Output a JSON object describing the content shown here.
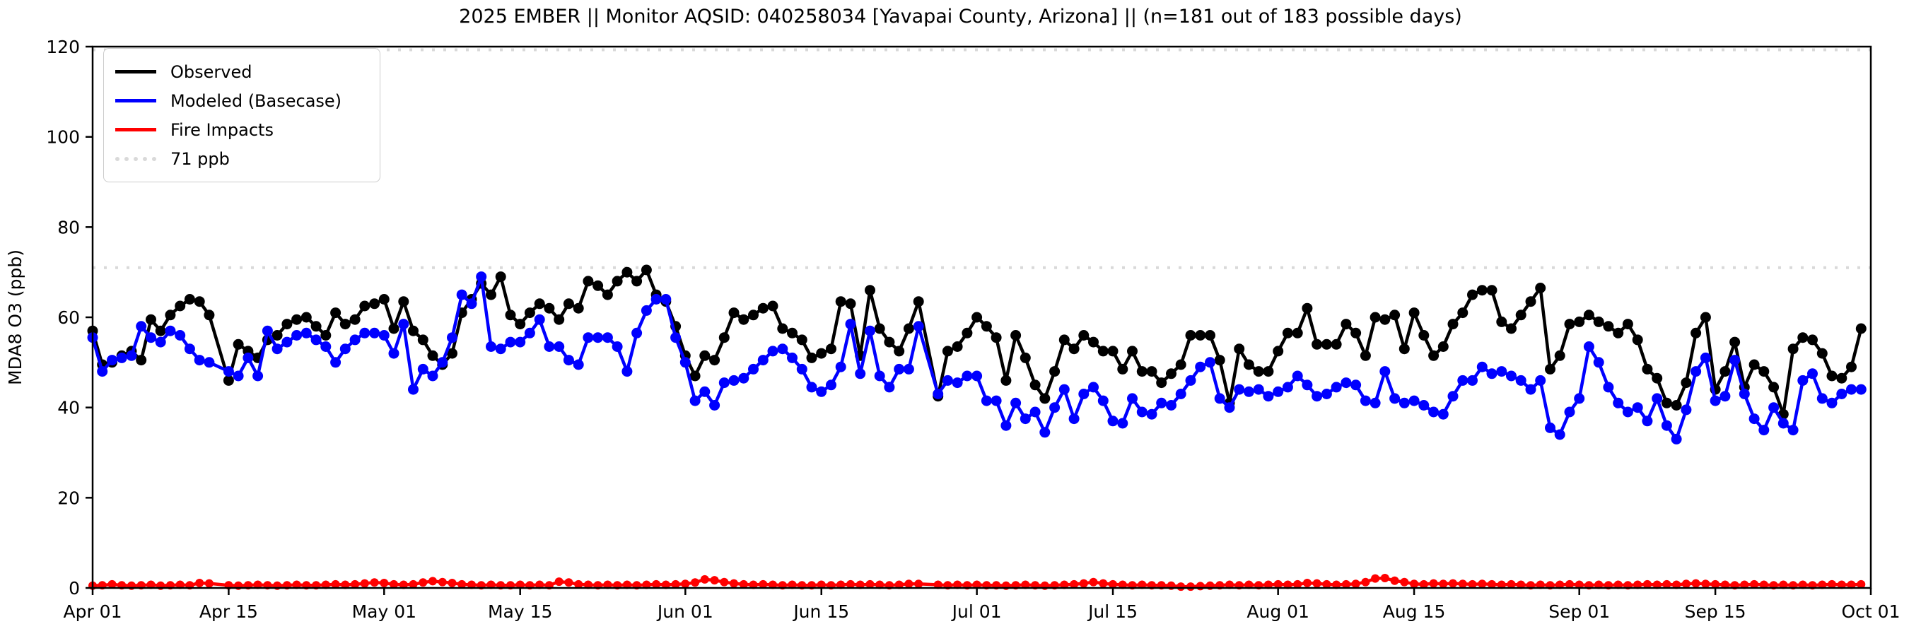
{
  "title": "2025 EMBER || Monitor AQSID: 040258034 [Yavapai County, Arizona] || (n=181 out of 183 possible days)",
  "legend": {
    "items": [
      {
        "label": "Observed",
        "color": "#000000",
        "style": "solid"
      },
      {
        "label": "Modeled (Basecase)",
        "color": "#0000ff",
        "style": "solid"
      },
      {
        "label": "Fire Impacts",
        "color": "#ff0000",
        "style": "solid"
      },
      {
        "label": "71 ppb",
        "color": "#d9d9d9",
        "style": "dotted"
      }
    ]
  },
  "axes": {
    "y_label": "MDA8 O3 (ppb)",
    "y_ticks": [
      0,
      20,
      40,
      60,
      80,
      100,
      120
    ],
    "y_min": 0,
    "y_max": 120,
    "x_ticks": [
      {
        "label": "Apr 01",
        "day": 0
      },
      {
        "label": "Apr 15",
        "day": 14
      },
      {
        "label": "May 01",
        "day": 30
      },
      {
        "label": "May 15",
        "day": 44
      },
      {
        "label": "Jun 01",
        "day": 61
      },
      {
        "label": "Jun 15",
        "day": 75
      },
      {
        "label": "Jul 01",
        "day": 91
      },
      {
        "label": "Jul 15",
        "day": 105
      },
      {
        "label": "Aug 01",
        "day": 122
      },
      {
        "label": "Aug 15",
        "day": 136
      },
      {
        "label": "Sep 01",
        "day": 153
      },
      {
        "label": "Sep 15",
        "day": 167
      },
      {
        "label": "Oct 01",
        "day": 183
      }
    ],
    "days_total": 183
  },
  "chart_data": {
    "type": "line",
    "title": "2025 EMBER || Monitor AQSID: 040258034 [Yavapai County, Arizona] || (n=181 out of 183 possible days)",
    "xlabel": "",
    "ylabel": "MDA8 O3 (ppb)",
    "ylim": [
      0,
      120
    ],
    "x_range": [
      "Apr 01",
      "Oct 01"
    ],
    "n_observed": 181,
    "n_possible": 183,
    "grid": false,
    "legend_position": "upper-left",
    "reference_lines": [
      {
        "value": 71,
        "label": "71 ppb",
        "color": "#d9d9d9",
        "style": "dotted"
      },
      {
        "value": 119.3,
        "label": "",
        "color": "#d9d9d9",
        "style": "dotted"
      }
    ],
    "series": [
      {
        "name": "Observed",
        "color": "#000000",
        "marker": "circle",
        "values": [
          57,
          49.5,
          50,
          51.5,
          52.5,
          50.5,
          59.5,
          57,
          60.5,
          62.5,
          64,
          63.5,
          60.5,
          null,
          46,
          54,
          52.5,
          51,
          55,
          56,
          58.5,
          59.5,
          60,
          58,
          56,
          61,
          58.5,
          59.5,
          62.5,
          63,
          64,
          57.5,
          63.5,
          57,
          55,
          51.5,
          49.5,
          52,
          61,
          64,
          67.5,
          65,
          69,
          60.5,
          58.5,
          61,
          63,
          62,
          59.5,
          63,
          62,
          68,
          67,
          65,
          68,
          70,
          68,
          70.5,
          65,
          63.5,
          58,
          51.5,
          47,
          51.5,
          50.5,
          55.5,
          61,
          59.5,
          60.5,
          62,
          62.5,
          57.5,
          56.5,
          55,
          51,
          52,
          53,
          63.5,
          63,
          51.5,
          66,
          57.5,
          54.5,
          52.5,
          57.5,
          63.5,
          null,
          42.5,
          52.5,
          53.5,
          56.5,
          60,
          58,
          55.5,
          46,
          56,
          51,
          45,
          42,
          48,
          55,
          53,
          56,
          54.5,
          52.5,
          52.5,
          48.5,
          52.5,
          48,
          48,
          45.5,
          47.5,
          49.5,
          56,
          56,
          56,
          50.5,
          41,
          53,
          49.5,
          48,
          48,
          52.5,
          56.5,
          56.5,
          62,
          54,
          54,
          54,
          58.5,
          56.5,
          51.5,
          60,
          59.5,
          60.5,
          53,
          61,
          56,
          51.5,
          53.5,
          58.5,
          61,
          65,
          66,
          66,
          59,
          57.5,
          60.5,
          63.5,
          66.5,
          48.5,
          51.5,
          58.5,
          59,
          60.5,
          59,
          58,
          56.5,
          58.5,
          55,
          48.5,
          46.5,
          41,
          40.5,
          45.5,
          56.5,
          60,
          44,
          48,
          54.5,
          44.5,
          49.5,
          48,
          44.5,
          38.5,
          53,
          55.5,
          55,
          52,
          47,
          46.5,
          49,
          57.5
        ]
      },
      {
        "name": "Modeled (Basecase)",
        "color": "#0000ff",
        "marker": "circle",
        "values": [
          55.5,
          48,
          50.5,
          51,
          51.5,
          58,
          55.5,
          54.5,
          57,
          56,
          53,
          50.5,
          50,
          null,
          48,
          47,
          51,
          47,
          57,
          53,
          54.5,
          56,
          56.5,
          55,
          53.5,
          50,
          53,
          55,
          56.5,
          56.5,
          56,
          52,
          58.5,
          44,
          48.5,
          47,
          50,
          55.5,
          65,
          63,
          69,
          53.5,
          53,
          54.5,
          54.5,
          56.5,
          59.5,
          53.5,
          53.5,
          50.5,
          49.5,
          55.5,
          55.5,
          55.5,
          53.5,
          48,
          56.5,
          61.5,
          64,
          64,
          55.5,
          50,
          41.5,
          43.5,
          40.5,
          45.5,
          46,
          46.5,
          48.5,
          50.5,
          52.5,
          53,
          51,
          48.5,
          44.5,
          43.5,
          45,
          49,
          58.5,
          47.5,
          57,
          47,
          44.5,
          48.5,
          48.5,
          58,
          null,
          43,
          46,
          45.5,
          47,
          47,
          41.5,
          41.5,
          36,
          41,
          37.5,
          39,
          34.5,
          40,
          44,
          37.5,
          43,
          44.5,
          41.5,
          37,
          36.5,
          42,
          39,
          38.5,
          41,
          40.5,
          43,
          46,
          49,
          50,
          42,
          40,
          44,
          43.5,
          44,
          42.5,
          43.5,
          44.5,
          47,
          45,
          42.5,
          43,
          44.5,
          45.5,
          45,
          41.5,
          41,
          48,
          42,
          41,
          41.5,
          40.5,
          39,
          38.5,
          42.5,
          46,
          46,
          49,
          47.5,
          48,
          47,
          46,
          44,
          46,
          35.5,
          34,
          39,
          42,
          53.5,
          50,
          44.5,
          41,
          39,
          40,
          37,
          42,
          36,
          33,
          39.5,
          48,
          51,
          41.5,
          42.5,
          50.5,
          43,
          37.5,
          35,
          40,
          36.5,
          35,
          46,
          47.5,
          42,
          41,
          43,
          44,
          44
        ]
      },
      {
        "name": "Fire Impacts",
        "color": "#ff0000",
        "marker": "circle",
        "values": [
          0.5,
          0.6,
          0.8,
          0.6,
          0.5,
          0.6,
          0.7,
          0.5,
          0.6,
          0.7,
          0.6,
          1.1,
          1.0,
          null,
          0.6,
          0.5,
          0.6,
          0.7,
          0.6,
          0.5,
          0.6,
          0.7,
          0.6,
          0.6,
          0.7,
          0.8,
          0.7,
          0.8,
          1.0,
          1.2,
          1.1,
          0.8,
          0.7,
          0.8,
          1.2,
          1.5,
          1.3,
          1.1,
          0.8,
          0.7,
          0.6,
          0.7,
          0.6,
          0.6,
          0.7,
          0.6,
          0.7,
          0.6,
          1.4,
          1.2,
          0.8,
          0.7,
          0.6,
          0.7,
          0.6,
          0.7,
          0.6,
          0.7,
          0.8,
          0.7,
          0.8,
          0.9,
          1.2,
          1.9,
          1.7,
          1.3,
          1.0,
          0.8,
          0.7,
          0.8,
          0.7,
          0.6,
          0.7,
          0.6,
          0.6,
          0.7,
          0.6,
          0.7,
          0.8,
          0.7,
          0.8,
          0.7,
          0.6,
          0.7,
          0.9,
          0.9,
          null,
          0.7,
          0.6,
          0.7,
          0.6,
          0.7,
          0.6,
          0.6,
          0.5,
          0.6,
          0.7,
          0.6,
          0.5,
          0.6,
          0.7,
          0.8,
          1.0,
          1.3,
          1.0,
          0.8,
          0.7,
          0.6,
          0.7,
          0.6,
          0.6,
          0.5,
          0.3,
          0.3,
          0.4,
          0.5,
          0.6,
          0.7,
          0.6,
          0.7,
          0.6,
          0.7,
          0.8,
          0.7,
          0.8,
          1.1,
          1.0,
          0.8,
          0.7,
          0.8,
          0.9,
          1.3,
          2.1,
          2.2,
          1.6,
          1.3,
          0.9,
          0.8,
          1.0,
          0.9,
          1.0,
          0.9,
          0.8,
          0.9,
          0.8,
          0.7,
          0.8,
          0.7,
          0.6,
          0.7,
          0.6,
          0.7,
          0.8,
          0.7,
          0.6,
          0.7,
          0.6,
          0.7,
          0.6,
          0.7,
          0.8,
          0.7,
          0.8,
          0.7,
          0.9,
          1.0,
          0.9,
          0.8,
          0.7,
          0.6,
          0.7,
          0.8,
          0.7,
          0.6,
          0.7,
          0.6,
          0.7,
          0.6,
          0.7,
          0.8,
          0.7,
          0.7,
          0.8
        ]
      }
    ]
  }
}
